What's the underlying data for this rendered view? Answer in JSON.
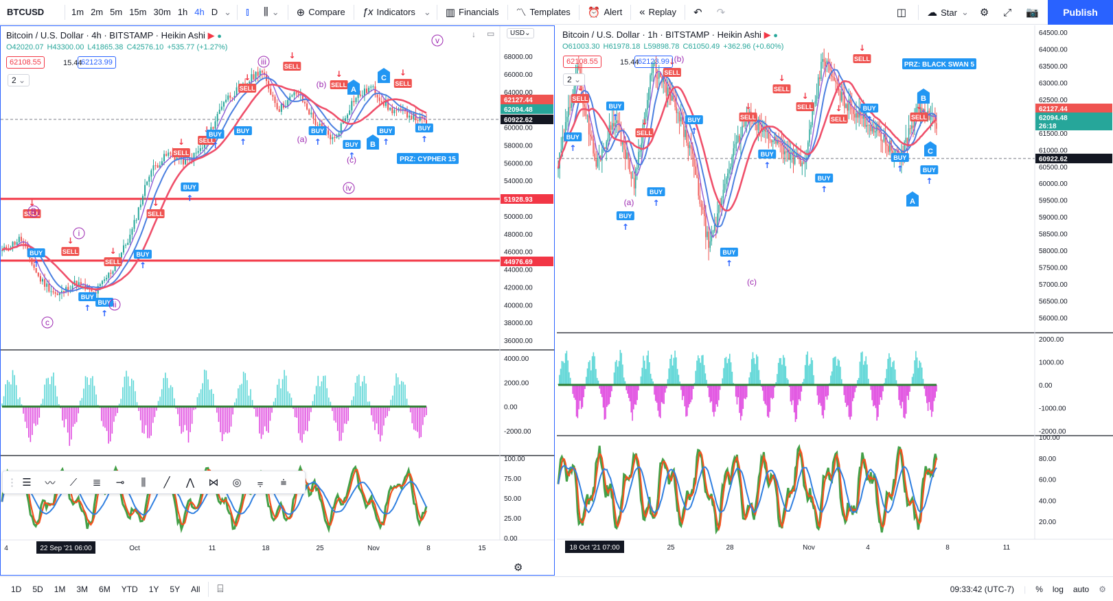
{
  "toolbar": {
    "symbol": "BTCUSD",
    "timeframes": [
      "1m",
      "2m",
      "5m",
      "15m",
      "30m",
      "1h",
      "4h",
      "D"
    ],
    "active_timeframe": "4h",
    "compare": "Compare",
    "indicators": "Indicators",
    "financials": "Financials",
    "templates": "Templates",
    "alert": "Alert",
    "replay": "Replay",
    "layout_name": "Star",
    "publish": "Publish"
  },
  "left_chart": {
    "title": "Bitcoin / U.S. Dollar · 4h · BITSTAMP · Heikin Ashi",
    "ohlc": {
      "o": "O42020.07",
      "h": "H43300.00",
      "l": "L41865.38",
      "c": "C42576.10",
      "chg": "+535.77 (+1.27%)"
    },
    "bid": "62108.55",
    "spread": "15.44",
    "ask": "62123.99",
    "interval_count": "2",
    "currency": "USD",
    "price_axis": [
      "68000.00",
      "66000.00",
      "64000.00",
      "62000.00",
      "60000.00",
      "58000.00",
      "56000.00",
      "54000.00",
      "52000.00",
      "50000.00",
      "48000.00",
      "46000.00",
      "44000.00",
      "42000.00",
      "40000.00",
      "38000.00",
      "36000.00"
    ],
    "price_tags": [
      {
        "value": "62127.44",
        "color": "#ef5350"
      },
      {
        "value": "62094.48",
        "color": "#26a69a"
      },
      {
        "value": "60922.62",
        "color": "#131722"
      },
      {
        "value": "51928.93",
        "color": "#f23645"
      },
      {
        "value": "44976.69",
        "color": "#f23645"
      }
    ],
    "osc_axis": [
      "4000.00",
      "2000.00",
      "0.00",
      "-2000.00"
    ],
    "rsi_axis": [
      "100.00",
      "75.00",
      "50.00",
      "25.00",
      "0.00"
    ],
    "time_axis": [
      "4",
      "Oct",
      "11",
      "18",
      "25",
      "Nov",
      "8",
      "15"
    ],
    "time_cursor": "22 Sep '21   06:00",
    "wave_labels": [
      "v",
      "iii",
      "i",
      "ii",
      "iv",
      "c",
      "(a)",
      "(b)",
      "(c)",
      "B"
    ],
    "pattern_labels": [
      "A",
      "B",
      "C"
    ],
    "prz": "PRZ: CYPHER 15",
    "signals": {
      "buy": "BUY",
      "sell": "SELL"
    }
  },
  "right_chart": {
    "title": "Bitcoin / U.S. Dollar · 1h · BITSTAMP · Heikin Ashi",
    "ohlc": {
      "o": "O61003.30",
      "h": "H61978.18",
      "l": "L59898.78",
      "c": "C61050.49",
      "chg": "+362.96 (+0.60%)"
    },
    "bid": "62108.55",
    "spread": "15.44",
    "ask": "62123.99",
    "interval_count": "2",
    "price_axis": [
      "64500.00",
      "64000.00",
      "63500.00",
      "63000.00",
      "62500.00",
      "62000.00",
      "61500.00",
      "61000.00",
      "60500.00",
      "60000.00",
      "59500.00",
      "59000.00",
      "58500.00",
      "58000.00",
      "57500.00",
      "57000.00",
      "56500.00",
      "56000.00"
    ],
    "price_tags": [
      {
        "value": "62127.44",
        "color": "#ef5350"
      },
      {
        "value": "62094.48",
        "color": "#26a69a"
      },
      {
        "value": "26:18",
        "color": "#26a69a"
      },
      {
        "value": "60922.62",
        "color": "#131722"
      }
    ],
    "osc_axis": [
      "2000.00",
      "1000.00",
      "0.00",
      "-1000.00",
      "-2000.00"
    ],
    "rsi_axis": [
      "100.00",
      "80.00",
      "60.00",
      "40.00",
      "20.00"
    ],
    "time_axis": [
      "22",
      "25",
      "28",
      "Nov",
      "4",
      "8",
      "11"
    ],
    "time_cursor": "18 Oct '21   07:00",
    "wave_labels": [
      "(a)",
      "(b)",
      "(c)"
    ],
    "pattern_labels": [
      "A",
      "B",
      "C"
    ],
    "prz": "PRZ: BLACK SWAN 5"
  },
  "bottombar": {
    "ranges": [
      "1D",
      "5D",
      "1M",
      "3M",
      "6M",
      "YTD",
      "1Y",
      "5Y",
      "All"
    ],
    "clock": "09:33:42 (UTC-7)",
    "pct": "%",
    "log": "log",
    "auto": "auto"
  }
}
